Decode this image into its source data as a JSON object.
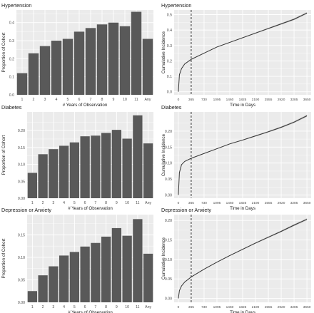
{
  "chart_data": [
    {
      "type": "bar",
      "title": "Hypertension",
      "xlabel": "# Years of Observation",
      "ylabel": "Proportion of Cohort",
      "categories": [
        "1",
        "2",
        "3",
        "4",
        "5",
        "6",
        "7",
        "8",
        "9",
        "10",
        "11",
        "Any"
      ],
      "values": [
        0.12,
        0.23,
        0.27,
        0.3,
        0.31,
        0.35,
        0.37,
        0.39,
        0.4,
        0.38,
        0.46,
        0.31
      ],
      "ylim": [
        0,
        0.47
      ],
      "yticks": [
        "0.0",
        "0.1",
        "0.2",
        "0.3",
        "0.4"
      ],
      "grid": true
    },
    {
      "type": "line",
      "title": "Hypertension",
      "xlabel": "Time in Days",
      "ylabel": "Cumulative Incidence",
      "x": [
        0,
        30,
        90,
        180,
        365,
        730,
        1095,
        1460,
        1825,
        2190,
        2555,
        2920,
        3285,
        3650
      ],
      "y": [
        0.0,
        0.11,
        0.15,
        0.18,
        0.21,
        0.25,
        0.29,
        0.32,
        0.35,
        0.38,
        0.41,
        0.44,
        0.47,
        0.51
      ],
      "xlim": [
        -120,
        3770
      ],
      "ylim": [
        -0.02,
        0.53
      ],
      "xticks": [
        "0",
        "365",
        "730",
        "1095",
        "1460",
        "1825",
        "2190",
        "2555",
        "2920",
        "3285",
        "3650"
      ],
      "yticks": [
        "0.0",
        "0.1",
        "0.2",
        "0.3",
        "0.4",
        "0.5"
      ],
      "vline": 365,
      "grid": true
    },
    {
      "type": "bar",
      "title": "Diabetes",
      "xlabel": "# Years of Observation",
      "ylabel": "Proportion of Cohort",
      "categories": [
        "1",
        "2",
        "3",
        "4",
        "5",
        "6",
        "7",
        "8",
        "9",
        "10",
        "11",
        "Any"
      ],
      "values": [
        0.075,
        0.13,
        0.145,
        0.155,
        0.165,
        0.183,
        0.185,
        0.193,
        0.202,
        0.176,
        0.245,
        0.162
      ],
      "ylim": [
        0,
        0.255
      ],
      "yticks": [
        "0.00",
        "0.05",
        "0.10",
        "0.15",
        "0.20"
      ],
      "grid": true
    },
    {
      "type": "line",
      "title": "Diabetes",
      "xlabel": "Time in Days",
      "ylabel": "Cumulative Incidence",
      "x": [
        0,
        30,
        90,
        180,
        365,
        730,
        1095,
        1460,
        1825,
        2190,
        2555,
        2920,
        3285,
        3650
      ],
      "y": [
        0.0,
        0.07,
        0.095,
        0.105,
        0.115,
        0.13,
        0.145,
        0.16,
        0.172,
        0.185,
        0.198,
        0.212,
        0.228,
        0.248
      ],
      "xlim": [
        -120,
        3770
      ],
      "ylim": [
        -0.01,
        0.26
      ],
      "xticks": [
        "0",
        "365",
        "730",
        "1095",
        "1460",
        "1825",
        "2190",
        "2555",
        "2920",
        "3285",
        "3650"
      ],
      "yticks": [
        "0.00",
        "0.05",
        "0.10",
        "0.15",
        "0.20"
      ],
      "vline": 365,
      "grid": true
    },
    {
      "type": "bar",
      "title": "Depression or Anxiety",
      "xlabel": "# Years of Observation",
      "ylabel": "Proportion of Cohort",
      "categories": [
        "1",
        "2",
        "3",
        "4",
        "5",
        "6",
        "7",
        "8",
        "9",
        "10",
        "11",
        "Any"
      ],
      "values": [
        0.025,
        0.06,
        0.08,
        0.104,
        0.112,
        0.124,
        0.132,
        0.146,
        0.165,
        0.148,
        0.185,
        0.108
      ],
      "ylim": [
        0,
        0.195
      ],
      "yticks": [
        "0.00",
        "0.05",
        "0.10",
        "0.15"
      ],
      "grid": true
    },
    {
      "type": "line",
      "title": "Depression or Anxiety",
      "xlabel": "Time in Days",
      "ylabel": "Cumulative Incidence",
      "x": [
        0,
        30,
        90,
        180,
        365,
        730,
        1095,
        1460,
        1825,
        2190,
        2555,
        2920,
        3285,
        3650
      ],
      "y": [
        0.0,
        0.02,
        0.032,
        0.042,
        0.055,
        0.075,
        0.093,
        0.11,
        0.126,
        0.142,
        0.157,
        0.172,
        0.188,
        0.203
      ],
      "xlim": [
        -120,
        3770
      ],
      "ylim": [
        -0.01,
        0.215
      ],
      "xticks": [
        "0",
        "365",
        "730",
        "1095",
        "1460",
        "1825",
        "2190",
        "2555",
        "2920",
        "3285",
        "3650"
      ],
      "yticks": [
        "0.00",
        "0.05",
        "0.10",
        "0.15",
        "0.20"
      ],
      "vline": 365,
      "grid": true
    }
  ],
  "colors": {
    "panel_bg": "#ebebeb",
    "grid": "#ffffff",
    "bar": "#595959",
    "line": "#333333",
    "ribbon": "#bdbdbd",
    "text": "#1a1a1a",
    "tick_text": "#4d4d4d"
  }
}
